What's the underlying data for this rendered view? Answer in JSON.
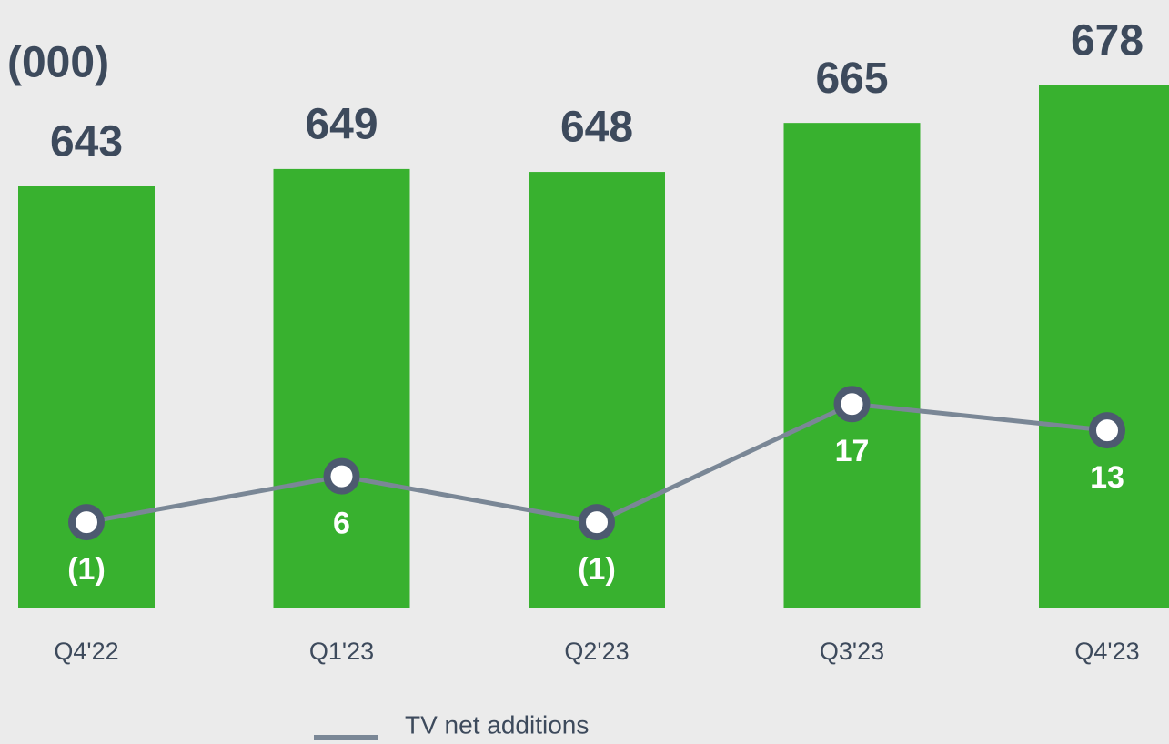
{
  "chart_data": {
    "type": "bar",
    "unit_label": "(000)",
    "categories": [
      "Q4'22",
      "Q1'23",
      "Q2'23",
      "Q3'23",
      "Q4'23"
    ],
    "values": [
      643,
      649,
      648,
      665,
      678
    ],
    "color": "#38b12f",
    "ylim": [
      497,
      695
    ],
    "y2lim": [
      -14,
      73
    ],
    "series": [
      {
        "name": "TV net additions",
        "type": "line",
        "axis": "y2",
        "color": "#7a8796",
        "values": [
          -1,
          6,
          -1,
          17,
          13
        ],
        "value_labels": [
          "(1)",
          "6",
          "(1)",
          "17",
          "13"
        ]
      }
    ],
    "legend": "bottom"
  }
}
